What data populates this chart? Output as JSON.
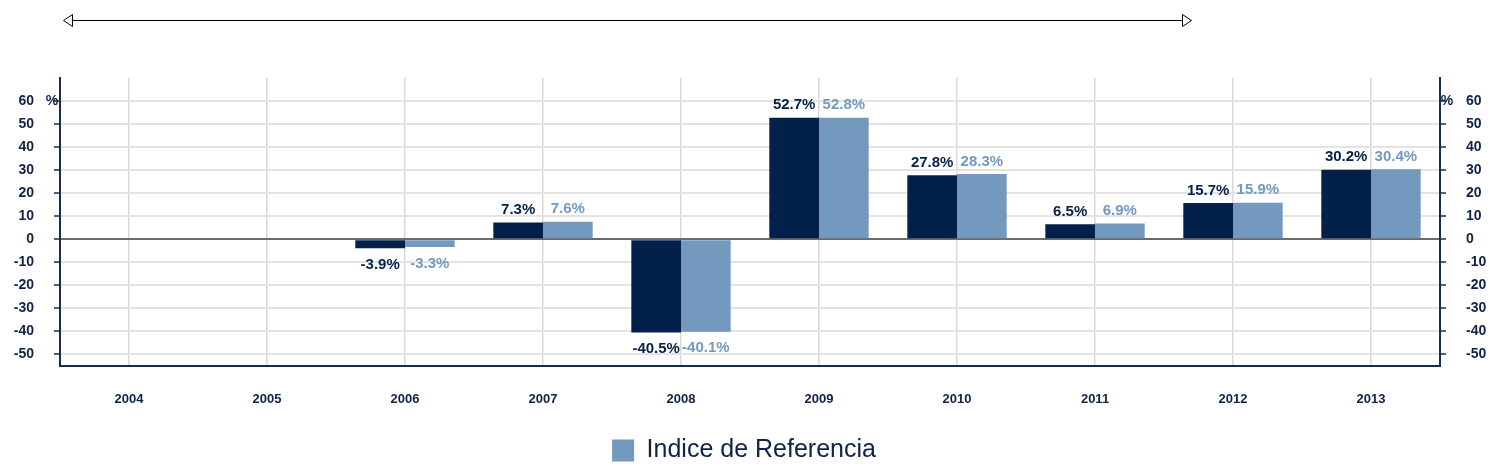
{
  "chart_data": {
    "type": "bar",
    "categories": [
      "2004",
      "2005",
      "2006",
      "2007",
      "2008",
      "2009",
      "2010",
      "2011",
      "2012",
      "2013"
    ],
    "series": [
      {
        "color": "#03204a",
        "values": [
          null,
          null,
          -3.9,
          7.3,
          -40.5,
          52.7,
          27.8,
          6.5,
          15.7,
          30.2
        ],
        "value_labels": [
          null,
          null,
          "-3.9%",
          "7.3%",
          "-40.5%",
          "52.7%",
          "27.8%",
          "6.5%",
          "15.7%",
          "30.2%"
        ]
      },
      {
        "name": "Indice de Referencia",
        "color": "#7399bf",
        "values": [
          null,
          null,
          -3.3,
          7.6,
          -40.1,
          52.8,
          28.3,
          6.9,
          15.9,
          30.4
        ],
        "value_labels": [
          null,
          null,
          "-3.3%",
          "7.6%",
          "-40.1%",
          "52.8%",
          "28.3%",
          "6.9%",
          "15.9%",
          "30.4%"
        ]
      }
    ],
    "ylabel": "%",
    "y2label": "%",
    "ylim": [
      -55,
      70
    ],
    "yticks": [
      -50,
      -40,
      -30,
      -20,
      -10,
      0,
      10,
      20,
      30,
      40,
      50,
      60
    ],
    "y2lim": [
      -55,
      70
    ],
    "y2ticks": [
      -50,
      -40,
      -30,
      -20,
      -10,
      0,
      10,
      20,
      30,
      40,
      50,
      60
    ],
    "grid": true,
    "legend": "bottom"
  }
}
